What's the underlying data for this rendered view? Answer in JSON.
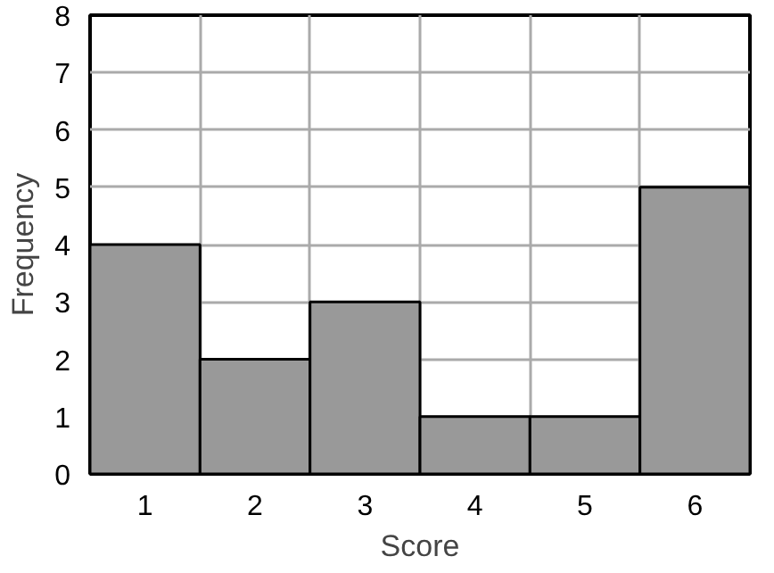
{
  "chart_data": {
    "type": "bar",
    "xlabel": "Score",
    "ylabel": "Frequency",
    "categories": [
      "1",
      "2",
      "3",
      "4",
      "5",
      "6"
    ],
    "values": [
      4,
      2,
      3,
      1,
      1,
      5
    ],
    "color": "#999999",
    "ylim": [
      0,
      8
    ],
    "yticks": [
      0,
      1,
      2,
      3,
      4,
      5,
      6,
      7,
      8
    ],
    "grid": true
  }
}
